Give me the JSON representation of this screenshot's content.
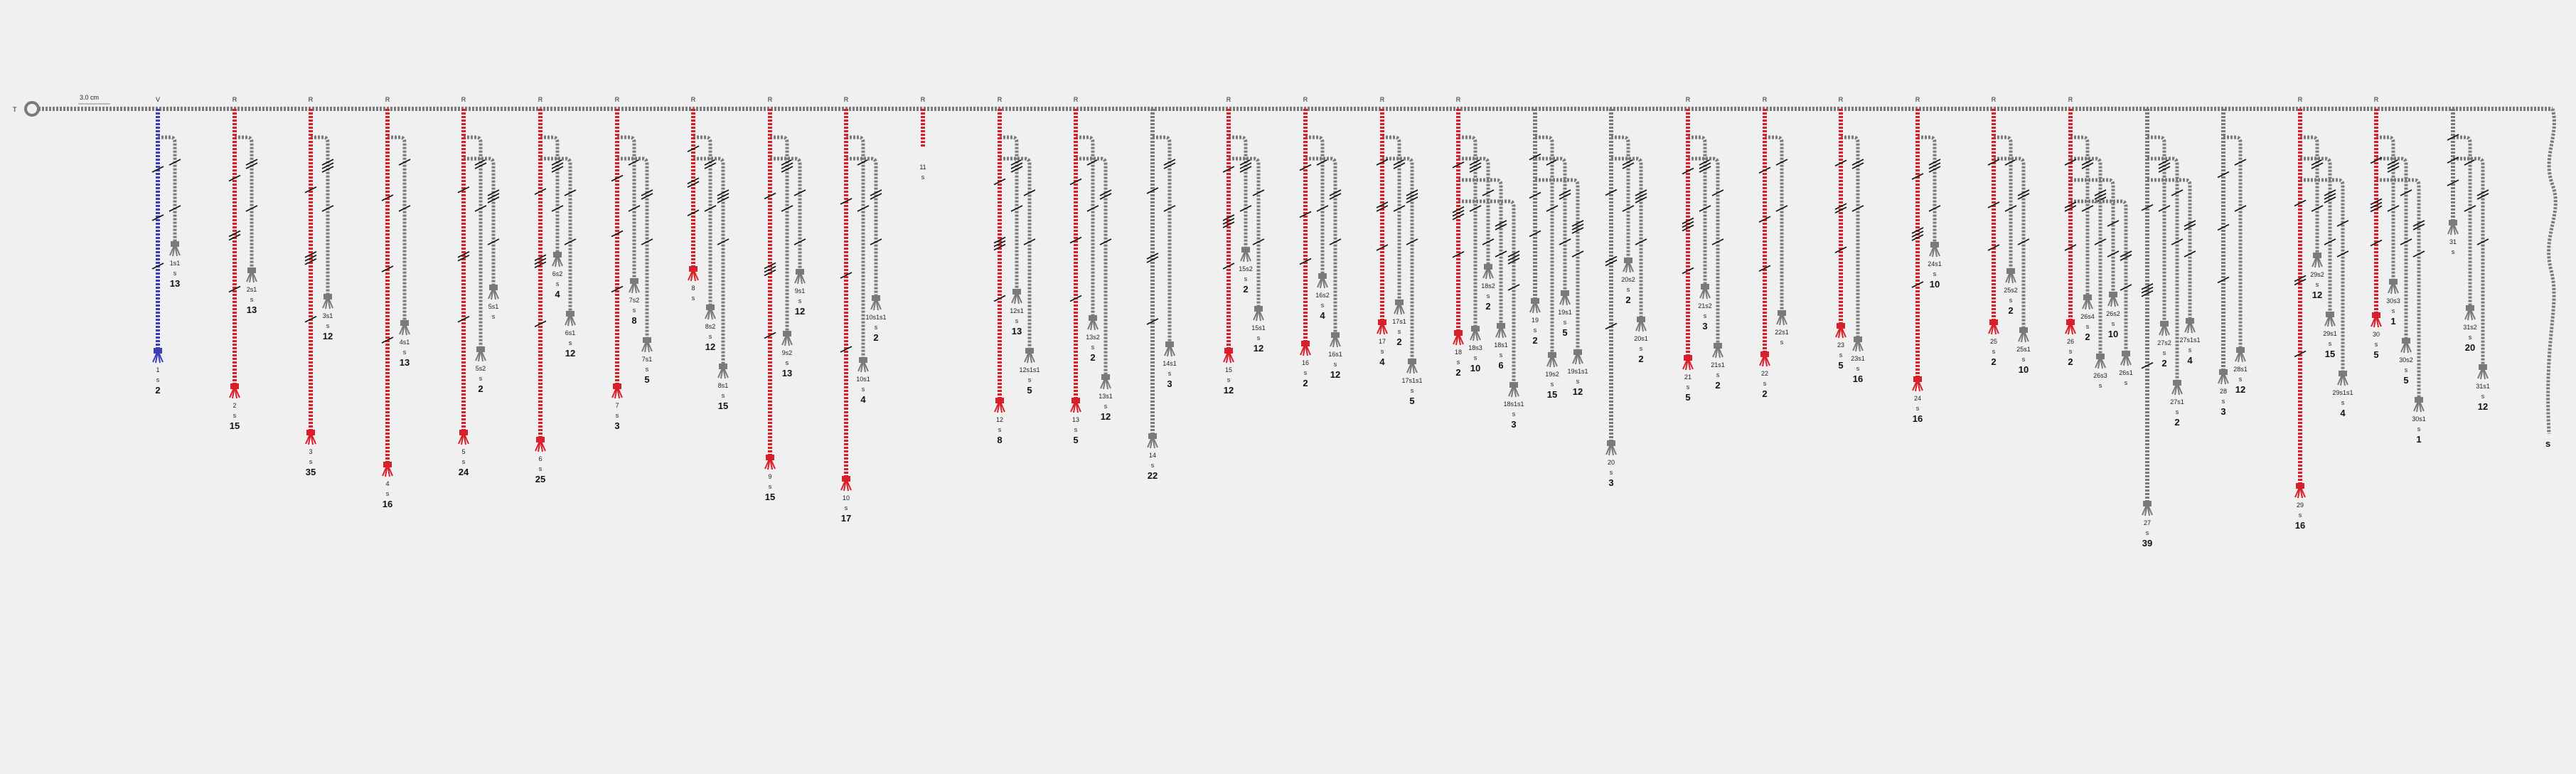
{
  "scale_label": "3.0 cm",
  "start_label": "T",
  "colors": {
    "background": "#f0f0f0",
    "cord_gray": "#7a7a7a",
    "cord_red": "#d8202a",
    "cord_blue": "#3a3fb8"
  },
  "pendants": [
    {
      "top": "V",
      "color": "blue",
      "label": "1",
      "s": "s",
      "n": "2",
      "subs": [
        {
          "label": "1s1",
          "n": "13"
        }
      ]
    },
    {
      "top": "R",
      "color": "red",
      "label": "2",
      "s": "s",
      "n": "15",
      "subs": [
        {
          "label": "2s1",
          "n": "13"
        }
      ]
    },
    {
      "top": "R",
      "color": "red",
      "label": "3",
      "s": "s",
      "n": "35",
      "subs": [
        {
          "label": "3s1",
          "n": "12"
        }
      ]
    },
    {
      "top": "R",
      "color": "red",
      "label": "4",
      "s": "s",
      "n": "16",
      "subs": [
        {
          "label": "4s1",
          "n": "13"
        }
      ]
    },
    {
      "top": "R",
      "color": "red",
      "label": "5",
      "s": "s",
      "n": "24",
      "subs": [
        {
          "label": "5s2",
          "n": "2"
        },
        {
          "label": "5s1",
          "n": ""
        }
      ]
    },
    {
      "top": "R",
      "color": "red",
      "label": "6",
      "s": "s",
      "n": "25",
      "subs": [
        {
          "label": "6s2",
          "n": "4"
        },
        {
          "label": "6s1",
          "n": "12"
        }
      ]
    },
    {
      "top": "R",
      "color": "red",
      "label": "7",
      "s": "s",
      "n": "3",
      "subs": [
        {
          "label": "7s2",
          "n": "8"
        },
        {
          "label": "7s1",
          "n": "5"
        }
      ]
    },
    {
      "top": "R",
      "color": "red",
      "label": "8",
      "s": "s",
      "n": "",
      "subs": [
        {
          "label": "8s2",
          "n": "12"
        },
        {
          "label": "8s1",
          "n": "15"
        }
      ]
    },
    {
      "top": "R",
      "color": "red",
      "label": "9",
      "s": "s",
      "n": "15",
      "subs": [
        {
          "label": "9s2",
          "n": "13"
        },
        {
          "label": "9s1",
          "n": "12"
        }
      ]
    },
    {
      "top": "R",
      "color": "red",
      "label": "10",
      "s": "s",
      "n": "17",
      "subs": [
        {
          "label": "10s1",
          "n": "4"
        },
        {
          "label": "10s1s1",
          "n": "2"
        }
      ]
    },
    {
      "top": "R",
      "color": "red",
      "label": "11",
      "s": "s",
      "n": "",
      "subs": []
    },
    {
      "top": "R",
      "color": "red",
      "label": "12",
      "s": "s",
      "n": "8",
      "subs": [
        {
          "label": "12s1",
          "n": "13"
        },
        {
          "label": "12s1s1",
          "n": "5"
        }
      ]
    },
    {
      "top": "R",
      "color": "red",
      "label": "13",
      "s": "s",
      "n": "5",
      "subs": [
        {
          "label": "13s2",
          "n": "2"
        },
        {
          "label": "13s1",
          "n": "12"
        }
      ]
    },
    {
      "top": "",
      "color": "gray",
      "label": "14",
      "s": "s",
      "n": "22",
      "subs": [
        {
          "label": "14s1",
          "n": "3"
        }
      ]
    },
    {
      "top": "R",
      "color": "red",
      "label": "15",
      "s": "s",
      "n": "12",
      "subs": [
        {
          "label": "15s2",
          "n": "2"
        },
        {
          "label": "15s1",
          "n": "12"
        }
      ]
    },
    {
      "top": "R",
      "color": "red",
      "label": "16",
      "s": "s",
      "n": "2",
      "subs": [
        {
          "label": "16s2",
          "n": "4"
        },
        {
          "label": "16s1",
          "n": "12"
        }
      ]
    },
    {
      "top": "R",
      "color": "red",
      "label": "17",
      "s": "s",
      "n": "4",
      "subs": [
        {
          "label": "17s1",
          "n": "2"
        },
        {
          "label": "17s1s1",
          "n": "5"
        }
      ]
    },
    {
      "top": "R",
      "color": "red",
      "label": "18",
      "s": "s",
      "n": "2",
      "subs": [
        {
          "label": "18s3",
          "n": "10"
        },
        {
          "label": "18s2",
          "n": "2"
        },
        {
          "label": "18s1",
          "n": "6"
        },
        {
          "label": "18s1s1",
          "n": "3"
        }
      ]
    },
    {
      "top": "",
      "color": "gray",
      "label": "19",
      "s": "s",
      "n": "2",
      "subs": [
        {
          "label": "19s2",
          "n": "15"
        },
        {
          "label": "19s1",
          "n": "5"
        },
        {
          "label": "19s1s1",
          "n": "12"
        }
      ]
    },
    {
      "top": "",
      "color": "gray",
      "label": "20",
      "s": "s",
      "n": "3",
      "subs": [
        {
          "label": "20s2",
          "n": "2"
        },
        {
          "label": "20s1",
          "n": "2"
        }
      ]
    },
    {
      "top": "R",
      "color": "red",
      "label": "21",
      "s": "s",
      "n": "5",
      "subs": [
        {
          "label": "21s2",
          "n": "3"
        },
        {
          "label": "21s1",
          "n": "2"
        }
      ]
    },
    {
      "top": "R",
      "color": "red",
      "label": "22",
      "s": "s",
      "n": "2",
      "subs": [
        {
          "label": "22s1",
          "n": ""
        }
      ]
    },
    {
      "top": "R",
      "color": "red",
      "label": "23",
      "s": "s",
      "n": "5",
      "subs": [
        {
          "label": "23s1",
          "n": "16"
        }
      ]
    },
    {
      "top": "R",
      "color": "red",
      "label": "24",
      "s": "s",
      "n": "16",
      "subs": [
        {
          "label": "24s1",
          "n": "10"
        }
      ]
    },
    {
      "top": "R",
      "color": "red",
      "label": "25",
      "s": "s",
      "n": "2",
      "subs": [
        {
          "label": "25s2",
          "n": "2"
        },
        {
          "label": "25s1",
          "n": "10"
        }
      ]
    },
    {
      "top": "R",
      "color": "red",
      "label": "26",
      "s": "s",
      "n": "2",
      "subs": [
        {
          "label": "26s4",
          "n": "2"
        },
        {
          "label": "26s3",
          "n": ""
        },
        {
          "label": "26s2",
          "n": "10"
        },
        {
          "label": "26s1",
          "n": ""
        }
      ]
    },
    {
      "top": "",
      "color": "gray",
      "label": "27",
      "s": "s",
      "n": "39",
      "subs": [
        {
          "label": "27s2",
          "n": "2"
        },
        {
          "label": "27s1",
          "n": "2"
        },
        {
          "label": "27s1s1",
          "n": "4"
        }
      ]
    },
    {
      "top": "",
      "color": "gray",
      "label": "28",
      "s": "s",
      "n": "3",
      "subs": [
        {
          "label": "28s1",
          "n": "12"
        }
      ]
    },
    {
      "top": "R",
      "color": "red",
      "label": "29",
      "s": "s",
      "n": "16",
      "subs": [
        {
          "label": "29s2",
          "n": "12"
        },
        {
          "label": "29s1",
          "n": "15"
        },
        {
          "label": "29s1s1",
          "n": "4"
        }
      ]
    },
    {
      "top": "R",
      "color": "red",
      "label": "30",
      "s": "s",
      "n": "5",
      "subs": [
        {
          "label": "30s3",
          "n": "1"
        },
        {
          "label": "30s2",
          "n": "5"
        },
        {
          "label": "30s1",
          "n": "1"
        }
      ]
    },
    {
      "top": "",
      "color": "gray",
      "label": "31",
      "s": "s",
      "n": "",
      "subs": [
        {
          "label": "31s2",
          "n": "20"
        },
        {
          "label": "31s1",
          "n": "12"
        }
      ]
    }
  ]
}
